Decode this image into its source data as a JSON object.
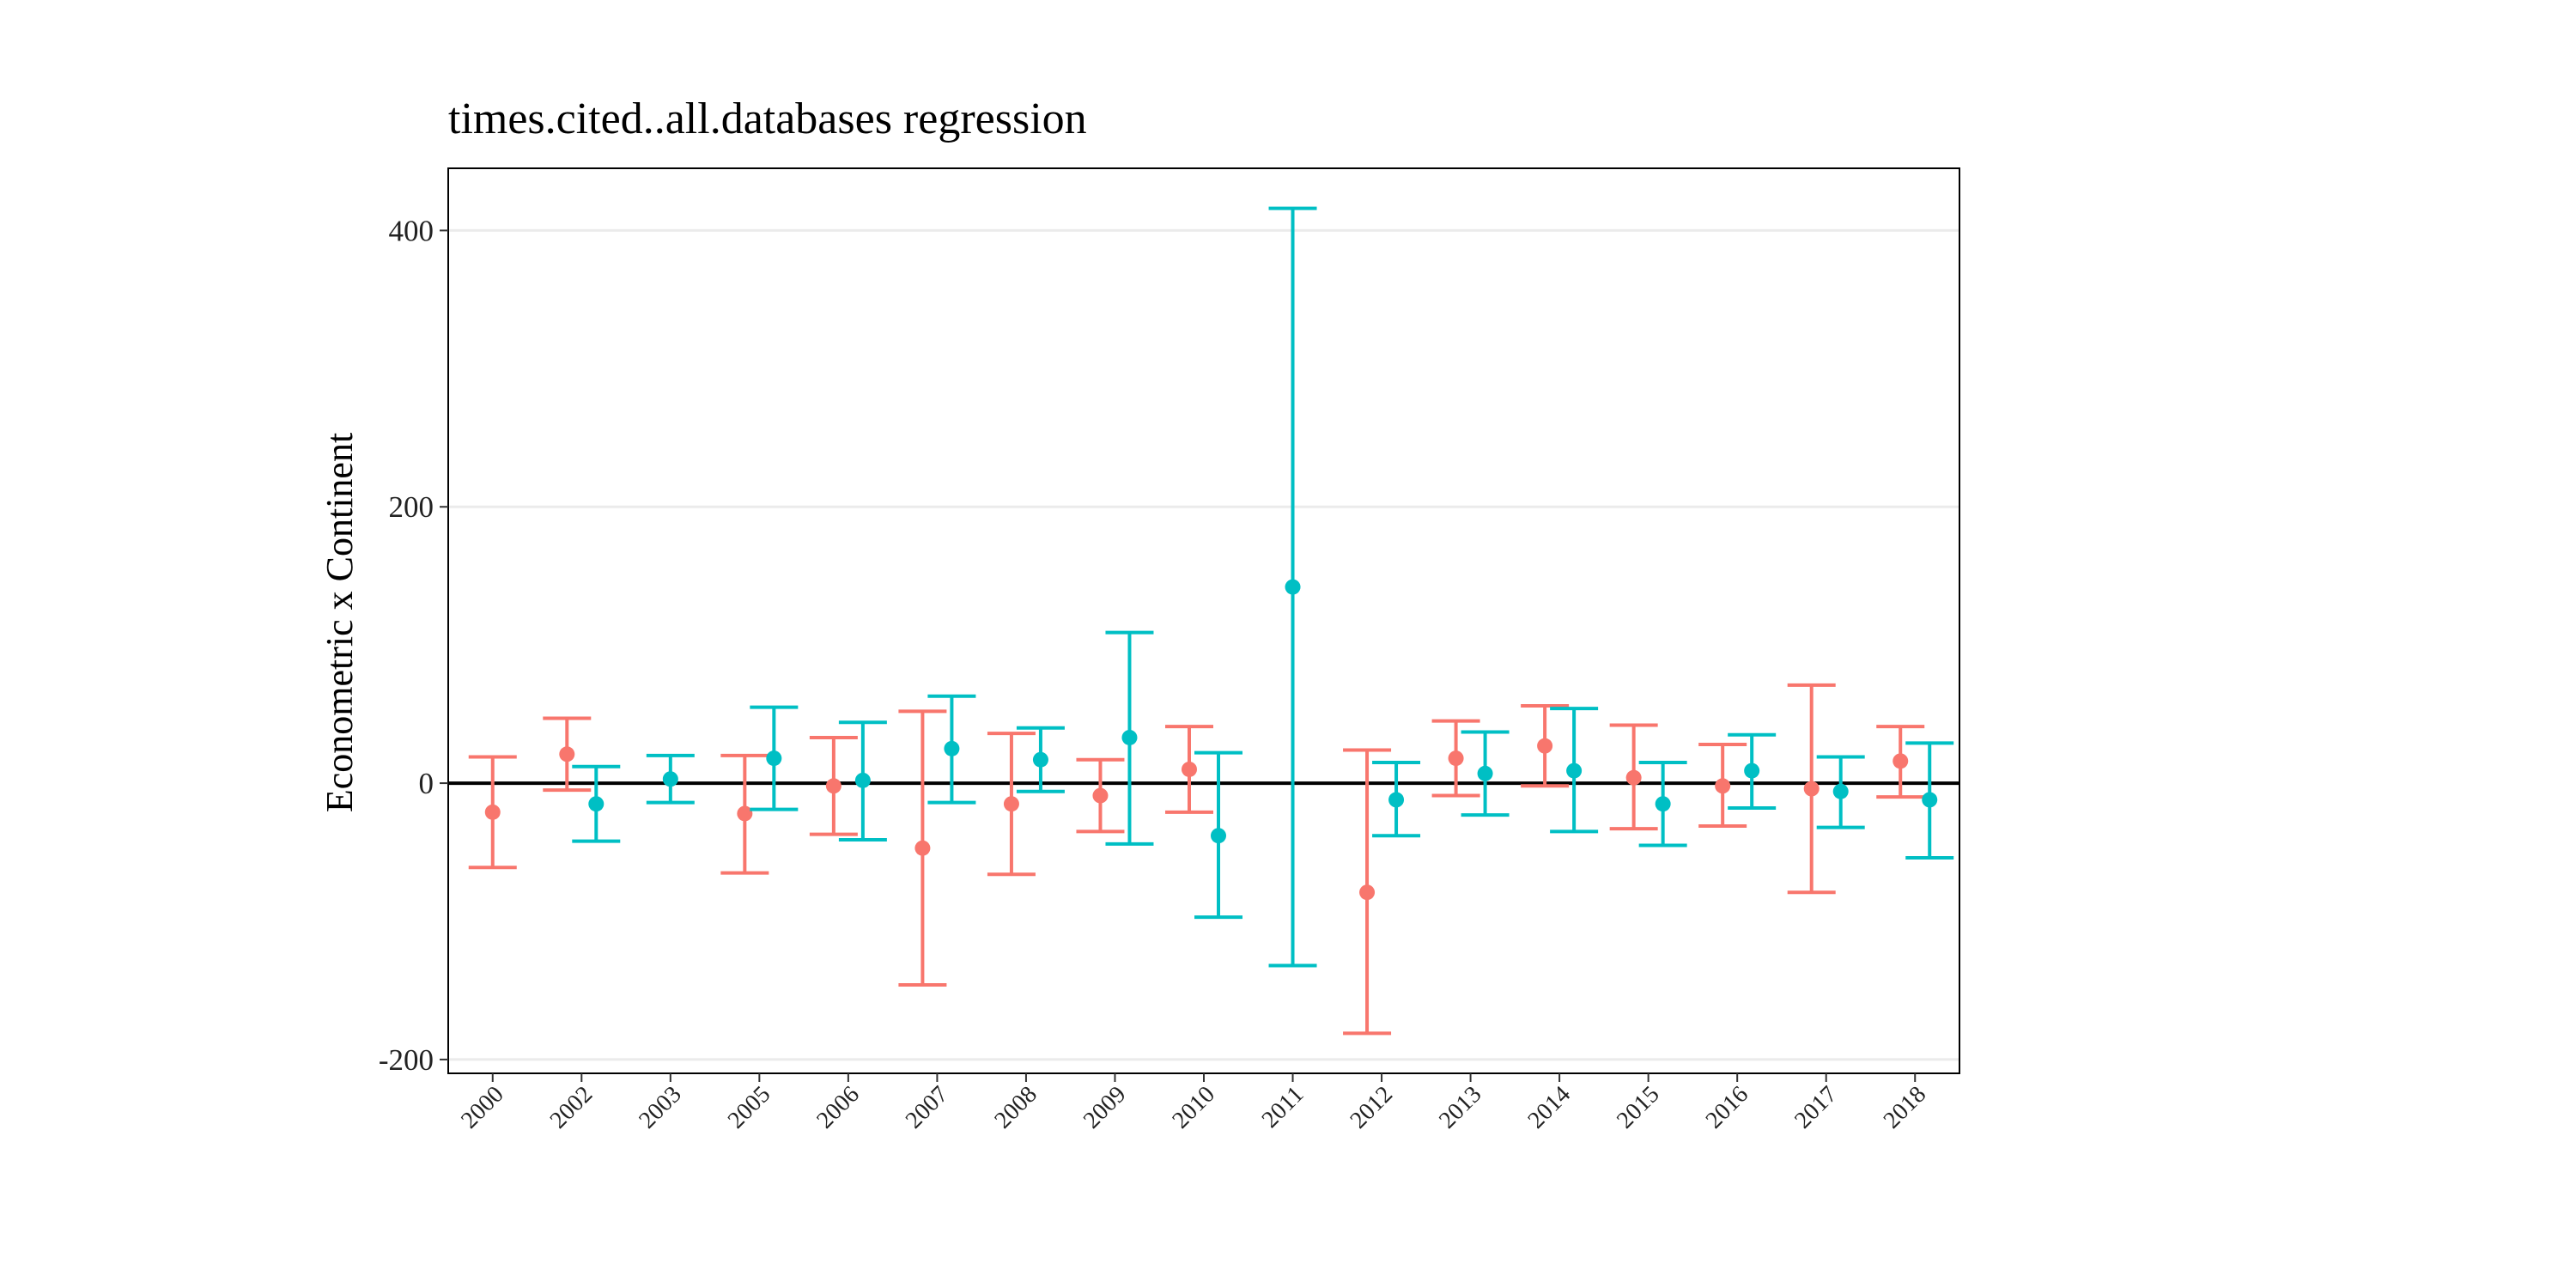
{
  "chart_data": {
    "type": "scatter",
    "title": "times.cited..all.databases regression",
    "xlabel": "",
    "ylabel": "Econometric x Continent",
    "ylim": [
      -210,
      445
    ],
    "yticks": [
      -200,
      0,
      200,
      400
    ],
    "grid": "horizontal",
    "reference_line": 0,
    "legend": "none",
    "categories": [
      "2000",
      "2002",
      "2003",
      "2005",
      "2006",
      "2007",
      "2008",
      "2009",
      "2010",
      "2011",
      "2012",
      "2013",
      "2014",
      "2015",
      "2016",
      "2017",
      "2018"
    ],
    "series": [
      {
        "color": "#F8766D",
        "points": [
          {
            "x": "2000",
            "estimate": -21,
            "lower": -61,
            "upper": 19
          },
          {
            "x": "2002",
            "estimate": 21,
            "lower": -5,
            "upper": 47
          },
          {
            "x": "2005",
            "estimate": -22,
            "lower": -65,
            "upper": 20
          },
          {
            "x": "2006",
            "estimate": -2,
            "lower": -37,
            "upper": 33
          },
          {
            "x": "2007",
            "estimate": -47,
            "lower": -146,
            "upper": 52
          },
          {
            "x": "2008",
            "estimate": -15,
            "lower": -66,
            "upper": 36
          },
          {
            "x": "2009",
            "estimate": -9,
            "lower": -35,
            "upper": 17
          },
          {
            "x": "2010",
            "estimate": 10,
            "lower": -21,
            "upper": 41
          },
          {
            "x": "2012",
            "estimate": -79,
            "lower": -181,
            "upper": 24
          },
          {
            "x": "2013",
            "estimate": 18,
            "lower": -9,
            "upper": 45
          },
          {
            "x": "2014",
            "estimate": 27,
            "lower": -2,
            "upper": 56
          },
          {
            "x": "2015",
            "estimate": 4,
            "lower": -33,
            "upper": 42
          },
          {
            "x": "2016",
            "estimate": -2,
            "lower": -31,
            "upper": 28
          },
          {
            "x": "2017",
            "estimate": -4,
            "lower": -79,
            "upper": 71
          },
          {
            "x": "2018",
            "estimate": 16,
            "lower": -10,
            "upper": 41
          }
        ]
      },
      {
        "color": "#00BFC4",
        "points": [
          {
            "x": "2002",
            "estimate": -15,
            "lower": -42,
            "upper": 12
          },
          {
            "x": "2003",
            "estimate": 3,
            "lower": -14,
            "upper": 20
          },
          {
            "x": "2005",
            "estimate": 18,
            "lower": -19,
            "upper": 55
          },
          {
            "x": "2006",
            "estimate": 2,
            "lower": -41,
            "upper": 44
          },
          {
            "x": "2007",
            "estimate": 25,
            "lower": -14,
            "upper": 63
          },
          {
            "x": "2008",
            "estimate": 17,
            "lower": -6,
            "upper": 40
          },
          {
            "x": "2009",
            "estimate": 33,
            "lower": -44,
            "upper": 109
          },
          {
            "x": "2010",
            "estimate": -38,
            "lower": -97,
            "upper": 22
          },
          {
            "x": "2011",
            "estimate": 142,
            "lower": -132,
            "upper": 416
          },
          {
            "x": "2012",
            "estimate": -12,
            "lower": -38,
            "upper": 15
          },
          {
            "x": "2013",
            "estimate": 7,
            "lower": -23,
            "upper": 37
          },
          {
            "x": "2014",
            "estimate": 9,
            "lower": -35,
            "upper": 54
          },
          {
            "x": "2015",
            "estimate": -15,
            "lower": -45,
            "upper": 15
          },
          {
            "x": "2016",
            "estimate": 9,
            "lower": -18,
            "upper": 35
          },
          {
            "x": "2017",
            "estimate": -6,
            "lower": -32,
            "upper": 19
          },
          {
            "x": "2018",
            "estimate": -12,
            "lower": -54,
            "upper": 29
          }
        ]
      }
    ]
  }
}
